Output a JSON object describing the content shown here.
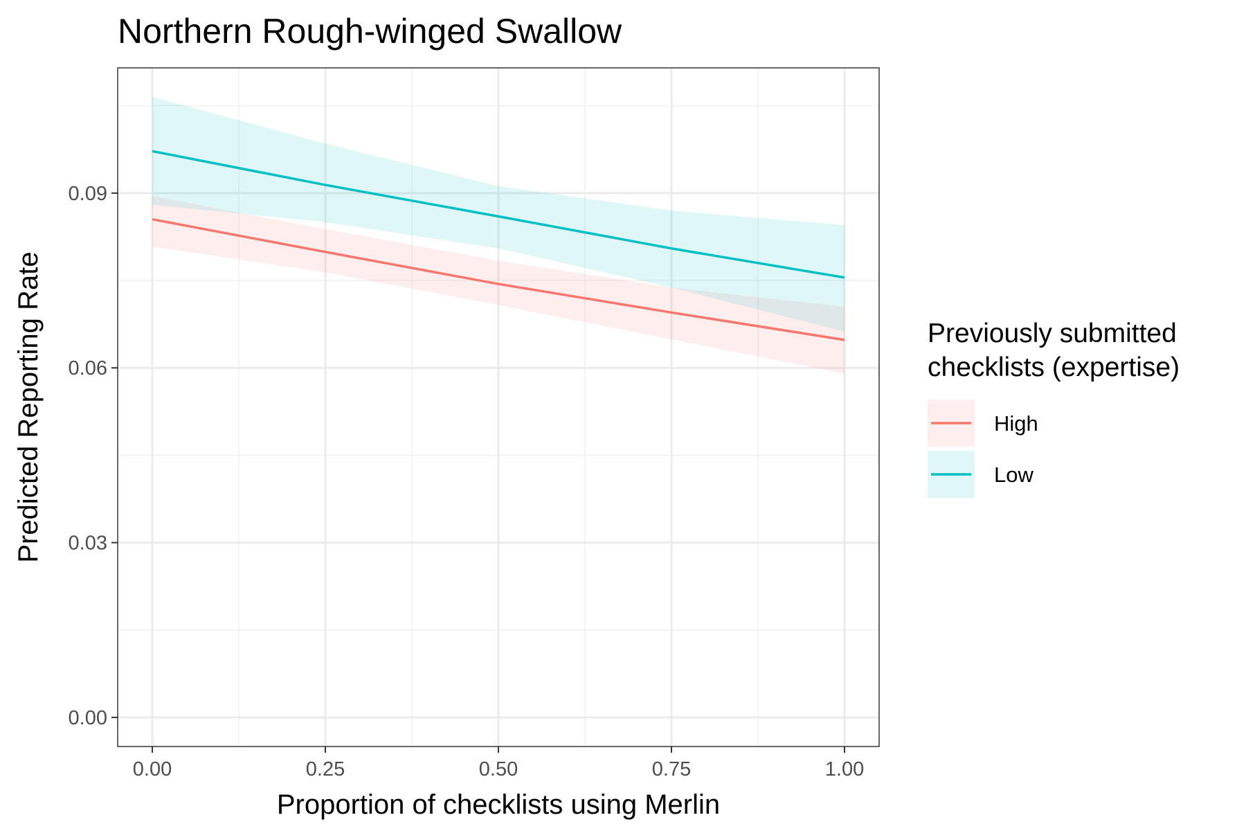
{
  "chart_data": {
    "type": "line",
    "title": "Northern Rough-winged Swallow",
    "xlabel": "Proportion of checklists using Merlin",
    "ylabel": "Predicted Reporting Rate",
    "xlim": [
      -0.05,
      1.05
    ],
    "ylim": [
      -0.005,
      0.1115
    ],
    "x_ticks": [
      0,
      0.25,
      0.5,
      0.75,
      1
    ],
    "x_tick_labels": [
      "0.00",
      "0.25",
      "0.50",
      "0.75",
      "1.00"
    ],
    "y_ticks": [
      0,
      0.03,
      0.06,
      0.09
    ],
    "y_tick_labels": [
      "0.00",
      "0.03",
      "0.06",
      "0.09"
    ],
    "grid": true,
    "legend": {
      "title_lines": [
        "Previously submitted",
        "checklists (expertise)"
      ],
      "placement": "right"
    },
    "x": [
      0,
      0.25,
      0.5,
      0.75,
      1
    ],
    "series": [
      {
        "name": "High",
        "color": "#F8766D",
        "values": [
          0.0855,
          0.0799,
          0.0744,
          0.0695,
          0.0648
        ],
        "lower": [
          0.0808,
          0.0764,
          0.0708,
          0.0649,
          0.059
        ],
        "upper": [
          0.0895,
          0.0838,
          0.0784,
          0.0738,
          0.0705
        ]
      },
      {
        "name": "Low",
        "color": "#00BFC4",
        "values": [
          0.0972,
          0.0914,
          0.086,
          0.0805,
          0.0755
        ],
        "lower": [
          0.088,
          0.085,
          0.0805,
          0.0738,
          0.0662
        ],
        "upper": [
          0.1065,
          0.0985,
          0.0912,
          0.087,
          0.0845
        ]
      }
    ]
  }
}
